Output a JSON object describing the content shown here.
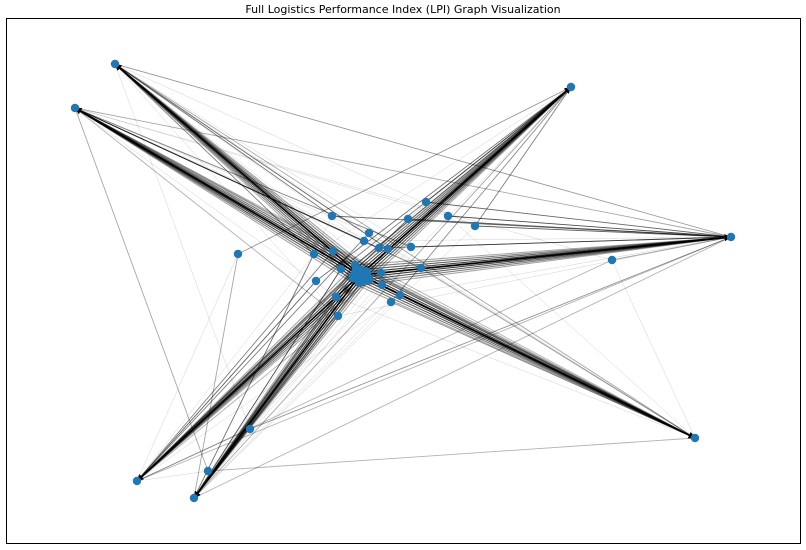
{
  "title": "Full Logistics Performance Index (LPI) Graph Visualization",
  "graph": {
    "type": "network",
    "directed": true,
    "node_color": "#1f77b4",
    "edge_color": "#000000",
    "hub_node": "hub",
    "nodes": [
      {
        "id": "hub",
        "size": 3
      },
      {
        "id": "outer-top-left-a",
        "size": 1
      },
      {
        "id": "outer-top-left-b",
        "size": 1
      },
      {
        "id": "outer-top-right",
        "size": 1
      },
      {
        "id": "outer-right",
        "size": 1
      },
      {
        "id": "outer-bottom-right",
        "size": 1
      },
      {
        "id": "outer-bottom-left-a",
        "size": 1
      },
      {
        "id": "outer-bottom-left-b",
        "size": 1
      },
      {
        "id": "inner-1",
        "size": 1
      },
      {
        "id": "inner-2",
        "size": 1
      },
      {
        "id": "inner-3",
        "size": 1
      },
      {
        "id": "inner-4",
        "size": 1
      },
      {
        "id": "inner-5",
        "size": 1
      },
      {
        "id": "inner-6",
        "size": 1
      },
      {
        "id": "inner-7",
        "size": 1
      },
      {
        "id": "inner-8",
        "size": 1
      },
      {
        "id": "inner-9",
        "size": 1
      },
      {
        "id": "inner-10",
        "size": 1
      },
      {
        "id": "inner-11",
        "size": 1
      },
      {
        "id": "inner-12",
        "size": 1
      },
      {
        "id": "inner-13",
        "size": 1
      },
      {
        "id": "inner-14",
        "size": 1
      },
      {
        "id": "inner-15",
        "size": 1
      },
      {
        "id": "inner-16",
        "size": 1
      },
      {
        "id": "inner-17",
        "size": 1
      },
      {
        "id": "inner-18",
        "size": 1
      },
      {
        "id": "inner-19",
        "size": 1
      },
      {
        "id": "inner-20",
        "size": 1
      },
      {
        "id": "inner-21",
        "size": 1
      },
      {
        "id": "inner-22",
        "size": 1
      },
      {
        "id": "inner-23",
        "size": 1
      },
      {
        "id": "inner-24",
        "size": 1
      },
      {
        "id": "inner-25",
        "size": 1
      },
      {
        "id": "inner-26",
        "size": 1
      }
    ],
    "outer_nodes": [
      "outer-top-left-a",
      "outer-top-left-b",
      "outer-top-right",
      "outer-right",
      "outer-bottom-right",
      "outer-bottom-left-a",
      "outer-bottom-left-b"
    ],
    "spoke_bundles": [
      {
        "target": "outer-top-left-a",
        "weight": 0.9
      },
      {
        "target": "outer-top-left-b",
        "weight": 1.0
      },
      {
        "target": "outer-top-right",
        "weight": 1.0
      },
      {
        "target": "outer-right",
        "weight": 1.0
      },
      {
        "target": "outer-bottom-right",
        "weight": 1.0
      },
      {
        "target": "outer-bottom-left-a",
        "weight": 0.9
      },
      {
        "target": "outer-bottom-left-b",
        "weight": 1.0
      }
    ],
    "extra_edges": [
      {
        "from": "inner-2",
        "to": "outer-right",
        "weight": 0.6
      },
      {
        "from": "inner-3",
        "to": "outer-right",
        "weight": 0.7
      },
      {
        "from": "inner-4",
        "to": "outer-right",
        "weight": 0.6
      },
      {
        "from": "inner-5",
        "to": "outer-right",
        "weight": 0.6
      },
      {
        "from": "inner-8",
        "to": "outer-right",
        "weight": 0.5
      },
      {
        "from": "inner-10",
        "to": "outer-right",
        "weight": 0.5
      },
      {
        "from": "inner-1",
        "to": "outer-right",
        "weight": 0.5
      },
      {
        "from": "inner-14",
        "to": "outer-bottom-right",
        "weight": 0.5
      },
      {
        "from": "inner-18",
        "to": "outer-bottom-right",
        "weight": 0.6
      },
      {
        "from": "inner-19",
        "to": "outer-bottom-right",
        "weight": 0.5
      },
      {
        "from": "inner-13",
        "to": "outer-bottom-right",
        "weight": 0.4
      },
      {
        "from": "inner-20",
        "to": "outer-bottom-right",
        "weight": 0.4
      },
      {
        "from": "inner-5",
        "to": "outer-bottom-left-a",
        "weight": 0.5
      },
      {
        "from": "inner-6",
        "to": "outer-bottom-left-a",
        "weight": 0.5
      },
      {
        "from": "inner-17",
        "to": "outer-bottom-left-a",
        "weight": 0.6
      },
      {
        "from": "inner-12",
        "to": "outer-bottom-left-a",
        "weight": 0.5
      },
      {
        "from": "inner-15",
        "to": "outer-bottom-left-b",
        "weight": 0.7
      },
      {
        "from": "inner-11",
        "to": "outer-bottom-left-b",
        "weight": 0.5
      },
      {
        "from": "inner-21",
        "to": "outer-bottom-left-b",
        "weight": 0.5
      },
      {
        "from": "inner-9",
        "to": "outer-bottom-left-b",
        "weight": 0.4
      },
      {
        "from": "inner-9",
        "to": "outer-top-left-a",
        "weight": 0.6
      },
      {
        "from": "inner-11",
        "to": "outer-top-left-a",
        "weight": 0.5
      },
      {
        "from": "inner-1",
        "to": "outer-top-left-a",
        "weight": 0.5
      },
      {
        "from": "inner-12",
        "to": "outer-top-left-a",
        "weight": 0.4
      },
      {
        "from": "inner-14",
        "to": "outer-top-left-a",
        "weight": 0.4
      },
      {
        "from": "inner-8",
        "to": "outer-top-left-b",
        "weight": 0.6
      },
      {
        "from": "inner-7",
        "to": "outer-top-left-b",
        "weight": 0.5
      },
      {
        "from": "inner-10",
        "to": "outer-top-left-b",
        "weight": 0.5
      },
      {
        "from": "inner-13",
        "to": "outer-top-left-b",
        "weight": 0.5
      },
      {
        "from": "inner-16",
        "to": "outer-top-left-b",
        "weight": 0.4
      },
      {
        "from": "inner-2",
        "to": "outer-top-right",
        "weight": 0.5
      },
      {
        "from": "inner-4",
        "to": "outer-top-right",
        "weight": 0.5
      },
      {
        "from": "inner-14",
        "to": "outer-top-right",
        "weight": 0.5
      },
      {
        "from": "inner-15",
        "to": "outer-top-right",
        "weight": 0.5
      },
      {
        "from": "inner-17",
        "to": "outer-top-right",
        "weight": 0.5
      },
      {
        "from": "inner-20",
        "to": "outer-top-right",
        "weight": 0.4
      },
      {
        "from": "outer-top-left-a",
        "to": "outer-right",
        "weight": 0.4
      },
      {
        "from": "outer-top-left-b",
        "to": "outer-right",
        "weight": 0.35
      },
      {
        "from": "outer-top-left-a",
        "to": "outer-bottom-right",
        "weight": 0.35
      },
      {
        "from": "outer-top-right",
        "to": "outer-bottom-left-a",
        "weight": 0.35
      },
      {
        "from": "outer-top-right",
        "to": "outer-bottom-left-b",
        "weight": 0.35
      },
      {
        "from": "outer-bottom-left-a",
        "to": "outer-right",
        "weight": 0.3
      },
      {
        "from": "outer-bottom-left-b",
        "to": "outer-right",
        "weight": 0.3
      },
      {
        "from": "outer-top-left-b",
        "to": "outer-bottom-right",
        "weight": 0.3
      },
      {
        "from": "inner-22",
        "to": "outer-bottom-left-a",
        "weight": 0.3
      },
      {
        "from": "inner-22",
        "to": "outer-bottom-left-b",
        "weight": 0.3
      },
      {
        "from": "inner-22",
        "to": "outer-top-left-b",
        "weight": 0.3
      },
      {
        "from": "inner-23",
        "to": "outer-bottom-left-b",
        "weight": 0.35
      },
      {
        "from": "inner-23",
        "to": "outer-top-right",
        "weight": 0.35
      },
      {
        "from": "inner-24",
        "to": "outer-right",
        "weight": 0.35
      },
      {
        "from": "inner-24",
        "to": "outer-bottom-left-a",
        "weight": 0.3
      },
      {
        "from": "inner-25",
        "to": "outer-right",
        "weight": 0.35
      },
      {
        "from": "inner-25",
        "to": "outer-bottom-left-a",
        "weight": 0.3
      },
      {
        "from": "inner-26",
        "to": "outer-top-left-b",
        "weight": 0.35
      },
      {
        "from": "inner-26",
        "to": "outer-bottom-right",
        "weight": 0.3
      }
    ]
  }
}
